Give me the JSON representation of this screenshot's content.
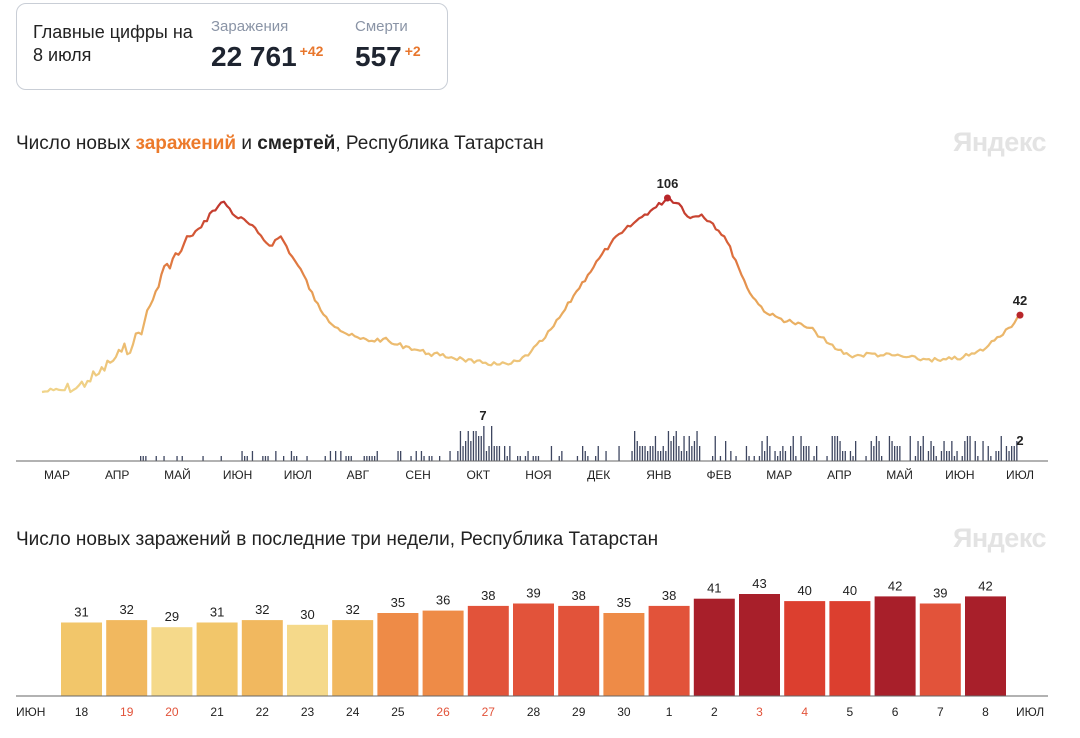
{
  "summary": {
    "heading": "Главные цифры на 8 июля",
    "cases_label": "Заражения",
    "cases_value": "22 761",
    "cases_delta": "+42",
    "deaths_label": "Смерти",
    "deaths_value": "557",
    "deaths_delta": "+2"
  },
  "branding": {
    "logo_text": "Яндекс"
  },
  "colors": {
    "accent_orange": "#ec7a2b",
    "death_bars": "#3e4660",
    "scale": [
      "#f5d98a",
      "#f2c166",
      "#efa24f",
      "#ea7e3e",
      "#e65a35",
      "#d63a2e",
      "#a81f2a"
    ]
  },
  "chart_data": [
    {
      "type": "line",
      "title_parts": {
        "prefix": "Число новых ",
        "cases_word": "заражений",
        "middle": " и ",
        "deaths_word": "смертей",
        "suffix": ", Республика Татарстан"
      },
      "x_ticks": [
        "МАР",
        "АПР",
        "МАЙ",
        "ИЮН",
        "ИЮЛ",
        "АВГ",
        "СЕН",
        "ОКТ",
        "НОЯ",
        "ДЕК",
        "ЯНВ",
        "ФЕВ",
        "МАР",
        "АПР",
        "МАЙ",
        "ИЮН",
        "ИЮЛ"
      ],
      "series": [
        {
          "kind": "cases",
          "annotation_peak": "106",
          "annotation_last": "42",
          "values": [
            0,
            1,
            1,
            2,
            6,
            10,
            16,
            22,
            26,
            38,
            55,
            70,
            75,
            85,
            90,
            99,
            104,
            96,
            93,
            87,
            80,
            85,
            74,
            64,
            50,
            41,
            35,
            31,
            29,
            28,
            29,
            26,
            25,
            23,
            21,
            20,
            19,
            18,
            16,
            16,
            15,
            15,
            17,
            22,
            28,
            36,
            45,
            55,
            64,
            73,
            81,
            87,
            92,
            97,
            101,
            106,
            103,
            95,
            97,
            92,
            85,
            72,
            57,
            48,
            42,
            40,
            38,
            36,
            33,
            27,
            23,
            20,
            20,
            21,
            20,
            20,
            19,
            18,
            18,
            17,
            18,
            19,
            21,
            24,
            30,
            35,
            42
          ]
        },
        {
          "kind": "deaths",
          "annotation_peak": "7",
          "annotation_last": "2"
        }
      ]
    },
    {
      "type": "bar",
      "title": "Число новых заражений в последние три недели, Республика Татарстан",
      "categories": [
        "18",
        "19",
        "20",
        "21",
        "22",
        "23",
        "24",
        "25",
        "26",
        "27",
        "28",
        "29",
        "30",
        "1",
        "2",
        "3",
        "4",
        "5",
        "6",
        "7",
        "8"
      ],
      "weekend": [
        false,
        true,
        true,
        false,
        false,
        false,
        false,
        false,
        true,
        true,
        false,
        false,
        false,
        false,
        false,
        true,
        true,
        false,
        false,
        false,
        false
      ],
      "values": [
        31,
        32,
        29,
        31,
        32,
        30,
        32,
        35,
        36,
        38,
        39,
        38,
        35,
        38,
        41,
        43,
        40,
        40,
        42,
        39,
        42
      ],
      "month_start": "ИЮН",
      "month_end": "ИЮЛ",
      "ylim": [
        0,
        43
      ]
    }
  ]
}
